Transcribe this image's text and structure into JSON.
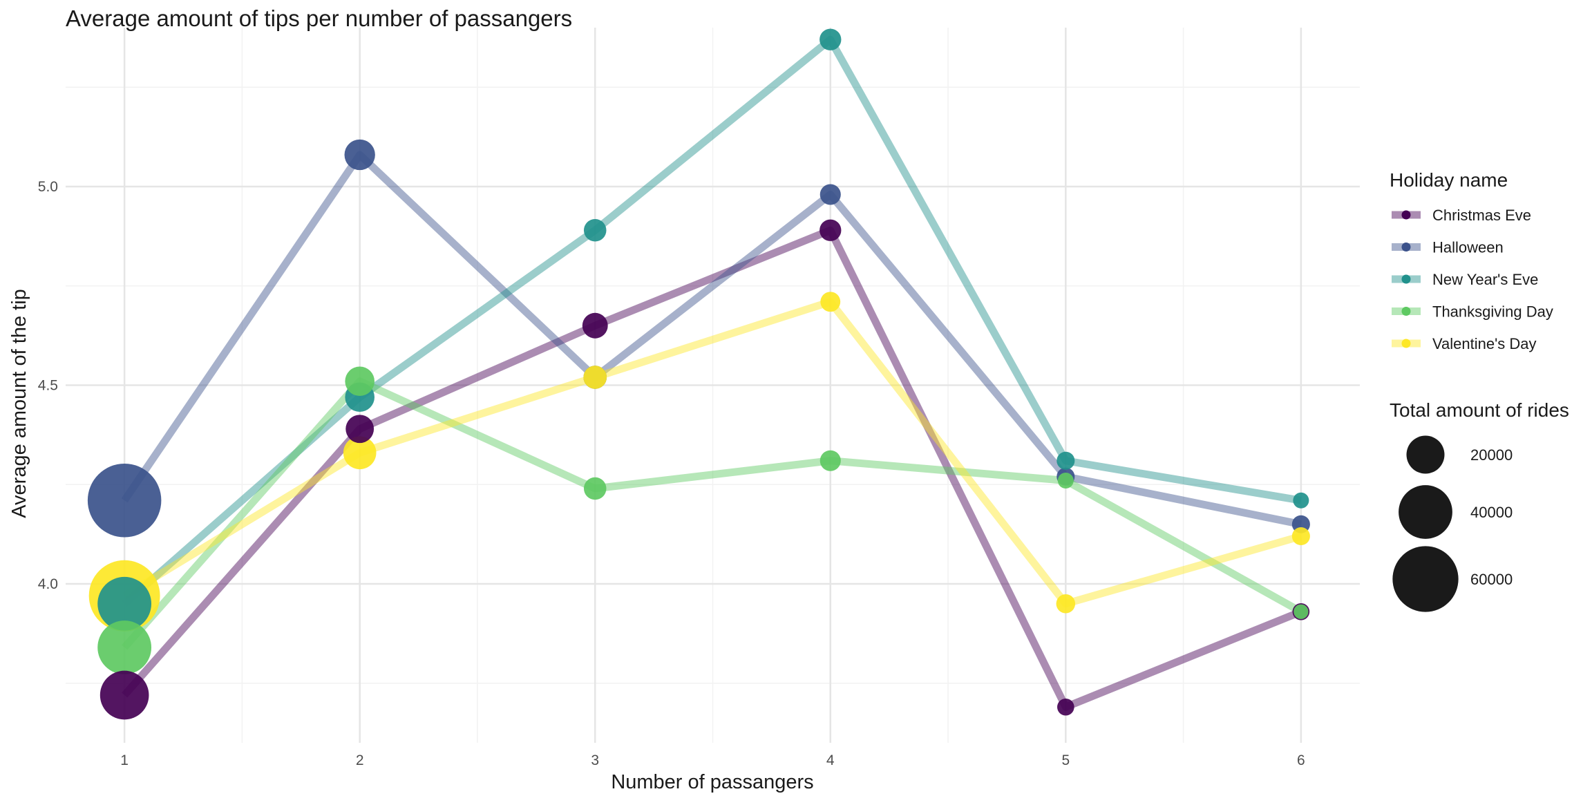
{
  "chart_data": {
    "type": "line",
    "title": "Average amount of tips per number of passangers",
    "xlabel": "Number of passangers",
    "ylabel": "Average amount of the tip",
    "x": [
      1,
      2,
      3,
      4,
      5,
      6
    ],
    "x_tick_labels": [
      "1",
      "2",
      "3",
      "4",
      "5",
      "6"
    ],
    "xlim": [
      0.75,
      6.25
    ],
    "ylim": [
      3.6,
      5.4
    ],
    "y_ticks": [
      4.0,
      4.5,
      5.0
    ],
    "y_tick_labels": [
      "4.0",
      "4.5",
      "5.0"
    ],
    "grid": true,
    "legend_position": "right",
    "color_legend_title": "Holiday name",
    "size_legend_title": "Total amount of rides",
    "size_legend": [
      {
        "label": "20000",
        "value": 20000
      },
      {
        "label": "40000",
        "value": 40000
      },
      {
        "label": "60000",
        "value": 60000
      }
    ],
    "series": [
      {
        "name": "Christmas Eve",
        "color": "#440154",
        "values": [
          3.72,
          4.39,
          4.65,
          4.89,
          3.69,
          3.93
        ],
        "rides": [
          33000,
          11000,
          9000,
          6500,
          4000,
          4000
        ]
      },
      {
        "name": "Halloween",
        "color": "#3b528b",
        "values": [
          4.21,
          5.08,
          4.52,
          4.98,
          4.27,
          4.15
        ],
        "rides": [
          75000,
          13000,
          7500,
          6000,
          4500,
          4500
        ]
      },
      {
        "name": "New Year's Eve",
        "color": "#21918c",
        "values": [
          3.95,
          4.47,
          4.89,
          5.37,
          4.31,
          4.21
        ],
        "rides": [
          40000,
          12000,
          7000,
          6500,
          4500,
          3500
        ]
      },
      {
        "name": "Thanksgiving Day",
        "color": "#5ec962",
        "values": [
          3.84,
          4.51,
          4.24,
          4.31,
          4.26,
          3.93
        ],
        "rides": [
          40000,
          12000,
          7000,
          6000,
          3500,
          3000
        ]
      },
      {
        "name": "Valentine's Day",
        "color": "#fde725",
        "values": [
          3.97,
          4.33,
          4.52,
          4.71,
          3.95,
          4.12
        ],
        "rides": [
          70000,
          15000,
          7500,
          5500,
          5000,
          4500
        ]
      }
    ]
  }
}
